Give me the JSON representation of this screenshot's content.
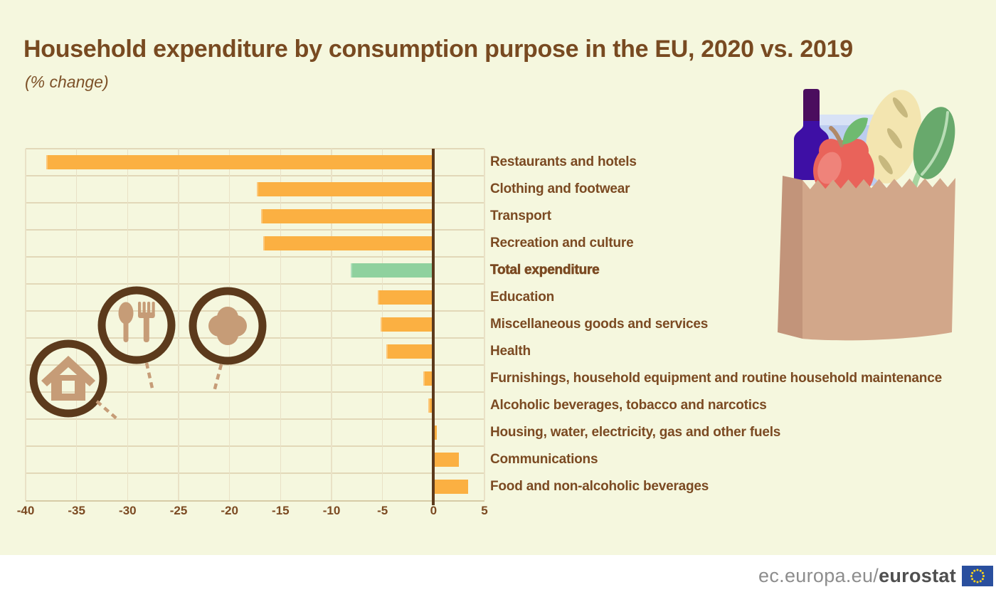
{
  "title": "Household expenditure by consumption purpose in the EU, 2020 vs. 2019",
  "subtitle": "(% change)",
  "chart_data": {
    "type": "bar",
    "orientation": "horizontal",
    "value_unit": "%",
    "categories": [
      "Restaurants and hotels",
      "Clothing and footwear",
      "Transport",
      "Recreation and culture",
      "Total expenditure",
      "Education",
      "Miscellaneous goods and services",
      "Health",
      "Furnishings, household equipment and routine household maintenance",
      "Alcoholic beverages, tobacco and narcotics",
      "Housing, water, electricity, gas and other fuels",
      "Communications",
      "Food and non-alcoholic beverages"
    ],
    "values": [
      -38.0,
      -17.3,
      -16.9,
      -16.7,
      -8.1,
      -5.5,
      -5.2,
      -4.6,
      -1.0,
      -0.5,
      0.3,
      2.5,
      3.4
    ],
    "bar_color": "#fbb042",
    "highlight_category": "Total expenditure",
    "highlight_color": "#8fd19e",
    "xlim": [
      -40,
      5
    ],
    "xticks": [
      -40,
      -35,
      -30,
      -25,
      -20,
      -15,
      -10,
      -5,
      0,
      5
    ],
    "grid": true,
    "legend": "none"
  },
  "pictograms": [
    {
      "name": "home-icon",
      "points_to": "Housing, water, electricity, gas and other fuels"
    },
    {
      "name": "spoon-fork-icon",
      "points_to": "Food and non-alcoholic beverages"
    },
    {
      "name": "health-cross-icon",
      "points_to": "Health"
    }
  ],
  "illustration": {
    "name": "grocery-bag-illustration",
    "items": [
      "wine-bottle",
      "milk-carton",
      "apple",
      "baguette",
      "leafy-greens",
      "paper-bag"
    ]
  },
  "footer": {
    "url_prefix": "ec.europa.eu/",
    "url_bold": "eurostat",
    "flag": "eu-flag-icon"
  },
  "colors": {
    "background": "#f5f7de",
    "bar_orange": "#fbb042",
    "bar_green": "#8fd19e",
    "zero_line": "#5c3a1c",
    "grid_line": "#e3dabc",
    "text_brown": "#7b4a22",
    "footer_bg": "#ffffff",
    "footer_text": "#8d8d8d",
    "eu_flag_blue": "#2a4f9e",
    "eu_flag_stars": "#ffd617"
  }
}
